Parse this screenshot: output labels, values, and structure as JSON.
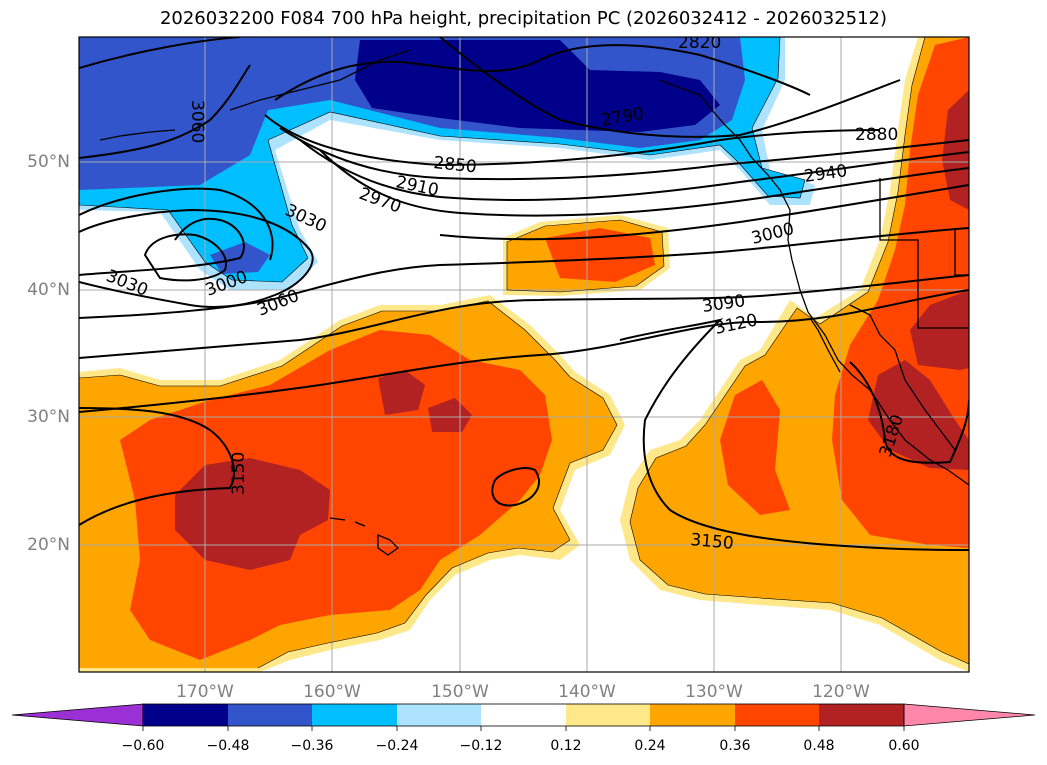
{
  "title": "2026032200 F084 700 hPa height, precipitation PC (2026032412 - 2026032512)",
  "map": {
    "lat_labels": [
      "50°N",
      "40°N",
      "30°N",
      "20°N"
    ],
    "lon_labels": [
      "170°W",
      "160°W",
      "150°W",
      "140°W",
      "130°W",
      "120°W"
    ],
    "contour_labels": [
      "3060",
      "2820",
      "2790",
      "2880",
      "2850",
      "2910",
      "2970",
      "2940",
      "3030",
      "3000",
      "3000",
      "3030",
      "3060",
      "3090",
      "3120",
      "3150",
      "3180",
      "3150"
    ]
  },
  "colorbar": {
    "colors": [
      "#9b30d4",
      "#00008b",
      "#3355cc",
      "#00bfff",
      "#aee3ff",
      "#ffffff",
      "#ffe88a",
      "#ffa500",
      "#ff4500",
      "#b22222",
      "#ff88aa"
    ],
    "tick_labels": [
      "−0.60",
      "−0.48",
      "−0.36",
      "−0.24",
      "−0.12",
      "0.12",
      "0.24",
      "0.36",
      "0.48",
      "0.60"
    ]
  }
}
